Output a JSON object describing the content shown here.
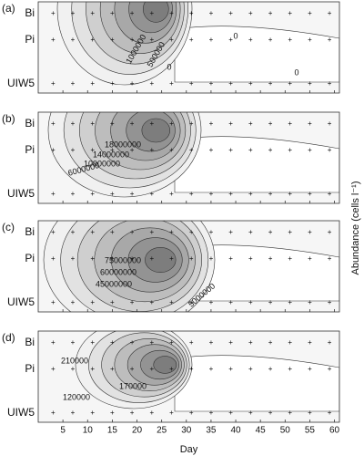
{
  "chart_data": [
    {
      "type": "contour",
      "panel": "(a)",
      "categories": [
        "Bi",
        "Pi",
        "UIW5"
      ],
      "levels": [
        1000000,
        500000,
        0,
        0,
        0
      ],
      "xlim": [
        0,
        61
      ],
      "xticks": [
        5,
        10,
        15,
        20,
        25,
        30,
        35,
        40,
        45,
        50,
        55,
        60
      ]
    },
    {
      "type": "contour",
      "panel": "(b)",
      "categories": [
        "Bi",
        "Pi",
        "UIW5"
      ],
      "levels": [
        18000000,
        14000000,
        10000000,
        6000000
      ],
      "xlim": [
        0,
        61
      ],
      "xticks": [
        5,
        10,
        15,
        20,
        25,
        30,
        35,
        40,
        45,
        50,
        55,
        60
      ]
    },
    {
      "type": "contour",
      "panel": "(c)",
      "categories": [
        "Bi",
        "Pi",
        "UIW5"
      ],
      "levels": [
        75000000,
        60000000,
        45000000,
        5000000
      ],
      "xlim": [
        0,
        61
      ],
      "xticks": [
        5,
        10,
        15,
        20,
        25,
        30,
        35,
        40,
        45,
        50,
        55,
        60
      ],
      "z_label": "Abundance (cells l⁻¹)"
    },
    {
      "type": "contour",
      "panel": "(d)",
      "categories": [
        "Bi",
        "Pi",
        "UIW5"
      ],
      "levels": [
        210000,
        170000,
        120000
      ],
      "xlim": [
        0,
        61
      ],
      "xticks": [
        5,
        10,
        15,
        20,
        25,
        30,
        35,
        40,
        45,
        50,
        55,
        60
      ],
      "x_label": "Day"
    }
  ]
}
